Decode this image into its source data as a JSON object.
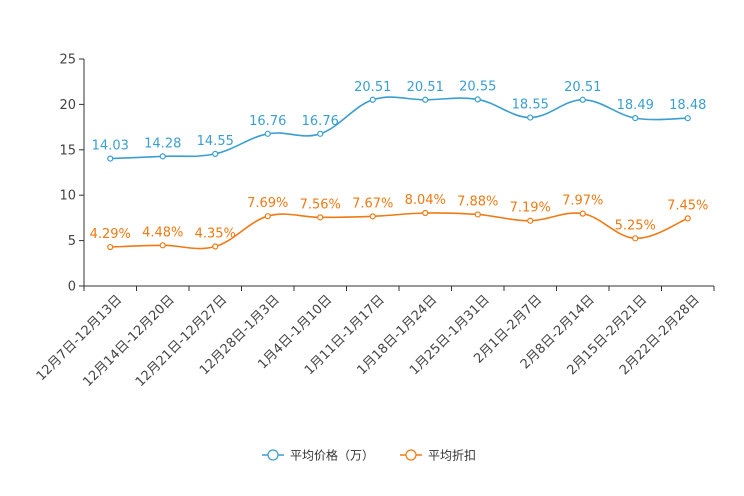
{
  "chart_data": {
    "type": "line",
    "title": "",
    "xlabel": "",
    "ylabel": "",
    "ylim": [
      0,
      25
    ],
    "yticks": [
      0,
      5,
      10,
      15,
      20,
      25
    ],
    "grid": false,
    "legend_position": "bottom",
    "categories": [
      "12月7日-12月13日",
      "12月14日-12月20日",
      "12月21日-12月27日",
      "12月28日-1月3日",
      "1月4日-1月10日",
      "1月11日-1月17日",
      "1月18日-1月24日",
      "1月25日-1月31日",
      "2月1日-2月7日",
      "2月8日-2月14日",
      "2月15日-2月21日",
      "2月22日-2月28日"
    ],
    "series": [
      {
        "name": "平均价格（万）",
        "color": "#3a9fd0",
        "values": [
          14.03,
          14.28,
          14.55,
          16.76,
          16.76,
          20.51,
          20.51,
          20.55,
          18.55,
          20.51,
          18.49,
          18.48
        ],
        "labels": [
          "14.03",
          "14.28",
          "14.55",
          "16.76",
          "16.76",
          "20.51",
          "20.51",
          "20.55",
          "18.55",
          "20.51",
          "18.49",
          "18.48"
        ]
      },
      {
        "name": "平均折扣",
        "color": "#f07a14",
        "values": [
          4.29,
          4.48,
          4.35,
          7.69,
          7.56,
          7.67,
          8.04,
          7.88,
          7.19,
          7.97,
          5.25,
          7.45
        ],
        "labels": [
          "4.29%",
          "4.48%",
          "4.35%",
          "7.69%",
          "7.56%",
          "7.67%",
          "8.04%",
          "7.88%",
          "7.19%",
          "7.97%",
          "5.25%",
          "7.45%"
        ]
      }
    ]
  }
}
